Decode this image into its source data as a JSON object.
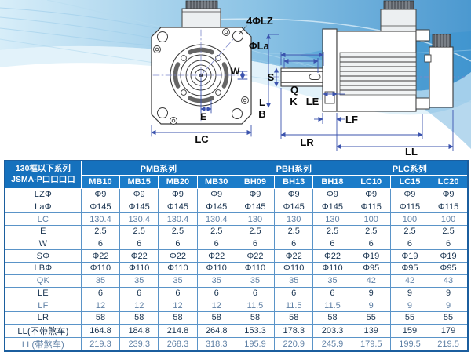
{
  "colors": {
    "header_group_bg": "#1571bd",
    "header_model_bg": "#1b7cc9",
    "corner_bg": "#1571bd",
    "grid_border": "#5a94c8",
    "outer_border": "#1b5e9e",
    "text_dark": "#17324f",
    "text_light": "#5f80a5",
    "wave_blue": "#1f7fc4",
    "dimension_blue": "#3b53ae"
  },
  "diagram": {
    "front_view": {
      "label_bolt_holes": "4ΦLZ",
      "label_bolt_circle": "ΦLa",
      "label_key_width": "W",
      "label_e": "E",
      "label_lc": "LC"
    },
    "side_view": {
      "label_s": "S",
      "label_q": "Q",
      "label_k": "K",
      "label_le": "LE",
      "label_l": "L",
      "label_b": "B",
      "label_lf": "LF",
      "label_lr": "LR",
      "label_ll": "LL"
    }
  },
  "table": {
    "corner_line1": "130框以下系列",
    "corner_line2": "JSMA-P口口口口",
    "series_groups": [
      {
        "label": "PMB系列",
        "span": 4
      },
      {
        "label": "PBH系列",
        "span": 3
      },
      {
        "label": "PLC系列",
        "span": 3
      }
    ],
    "models": [
      "MB10",
      "MB15",
      "MB20",
      "MB30",
      "BH09",
      "BH13",
      "BH18",
      "LC10",
      "LC15",
      "LC20"
    ],
    "rows": [
      {
        "label": "LZΦ",
        "tone": "dark",
        "values": [
          "Φ9",
          "Φ9",
          "Φ9",
          "Φ9",
          "Φ9",
          "Φ9",
          "Φ9",
          "Φ9",
          "Φ9",
          "Φ9"
        ]
      },
      {
        "label": "LaΦ",
        "tone": "dark",
        "values": [
          "Φ145",
          "Φ145",
          "Φ145",
          "Φ145",
          "Φ145",
          "Φ145",
          "Φ145",
          "Φ115",
          "Φ115",
          "Φ115"
        ]
      },
      {
        "label": "LC",
        "tone": "light",
        "values": [
          "130.4",
          "130.4",
          "130.4",
          "130.4",
          "130",
          "130",
          "130",
          "100",
          "100",
          "100"
        ]
      },
      {
        "label": "E",
        "tone": "dark",
        "values": [
          "2.5",
          "2.5",
          "2.5",
          "2.5",
          "2.5",
          "2.5",
          "2.5",
          "2.5",
          "2.5",
          "2.5"
        ]
      },
      {
        "label": "W",
        "tone": "dark",
        "values": [
          "6",
          "6",
          "6",
          "6",
          "6",
          "6",
          "6",
          "6",
          "6",
          "6"
        ]
      },
      {
        "label": "SΦ",
        "tone": "dark",
        "values": [
          "Φ22",
          "Φ22",
          "Φ22",
          "Φ22",
          "Φ22",
          "Φ22",
          "Φ22",
          "Φ19",
          "Φ19",
          "Φ19"
        ]
      },
      {
        "label": "LBΦ",
        "tone": "dark",
        "values": [
          "Φ110",
          "Φ110",
          "Φ110",
          "Φ110",
          "Φ110",
          "Φ110",
          "Φ110",
          "Φ95",
          "Φ95",
          "Φ95"
        ]
      },
      {
        "label": "QK",
        "tone": "light",
        "values": [
          "35",
          "35",
          "35",
          "35",
          "35",
          "35",
          "35",
          "42",
          "42",
          "43"
        ]
      },
      {
        "label": "LE",
        "tone": "dark",
        "values": [
          "6",
          "6",
          "6",
          "6",
          "6",
          "6",
          "6",
          "9",
          "9",
          "9"
        ]
      },
      {
        "label": "LF",
        "tone": "light",
        "values": [
          "12",
          "12",
          "12",
          "12",
          "11.5",
          "11.5",
          "11.5",
          "9",
          "9",
          "9"
        ]
      },
      {
        "label": "LR",
        "tone": "dark",
        "values": [
          "58",
          "58",
          "58",
          "58",
          "58",
          "58",
          "58",
          "55",
          "55",
          "55"
        ]
      },
      {
        "label": "LL(不带煞车)",
        "tone": "dark",
        "values": [
          "164.8",
          "184.8",
          "214.8",
          "264.8",
          "153.3",
          "178.3",
          "203.3",
          "139",
          "159",
          "179"
        ]
      },
      {
        "label": "LL(带煞车)",
        "tone": "light",
        "values": [
          "219.3",
          "239.3",
          "268.3",
          "318.3",
          "195.9",
          "220.9",
          "245.9",
          "179.5",
          "199.5",
          "219.5"
        ]
      }
    ]
  }
}
